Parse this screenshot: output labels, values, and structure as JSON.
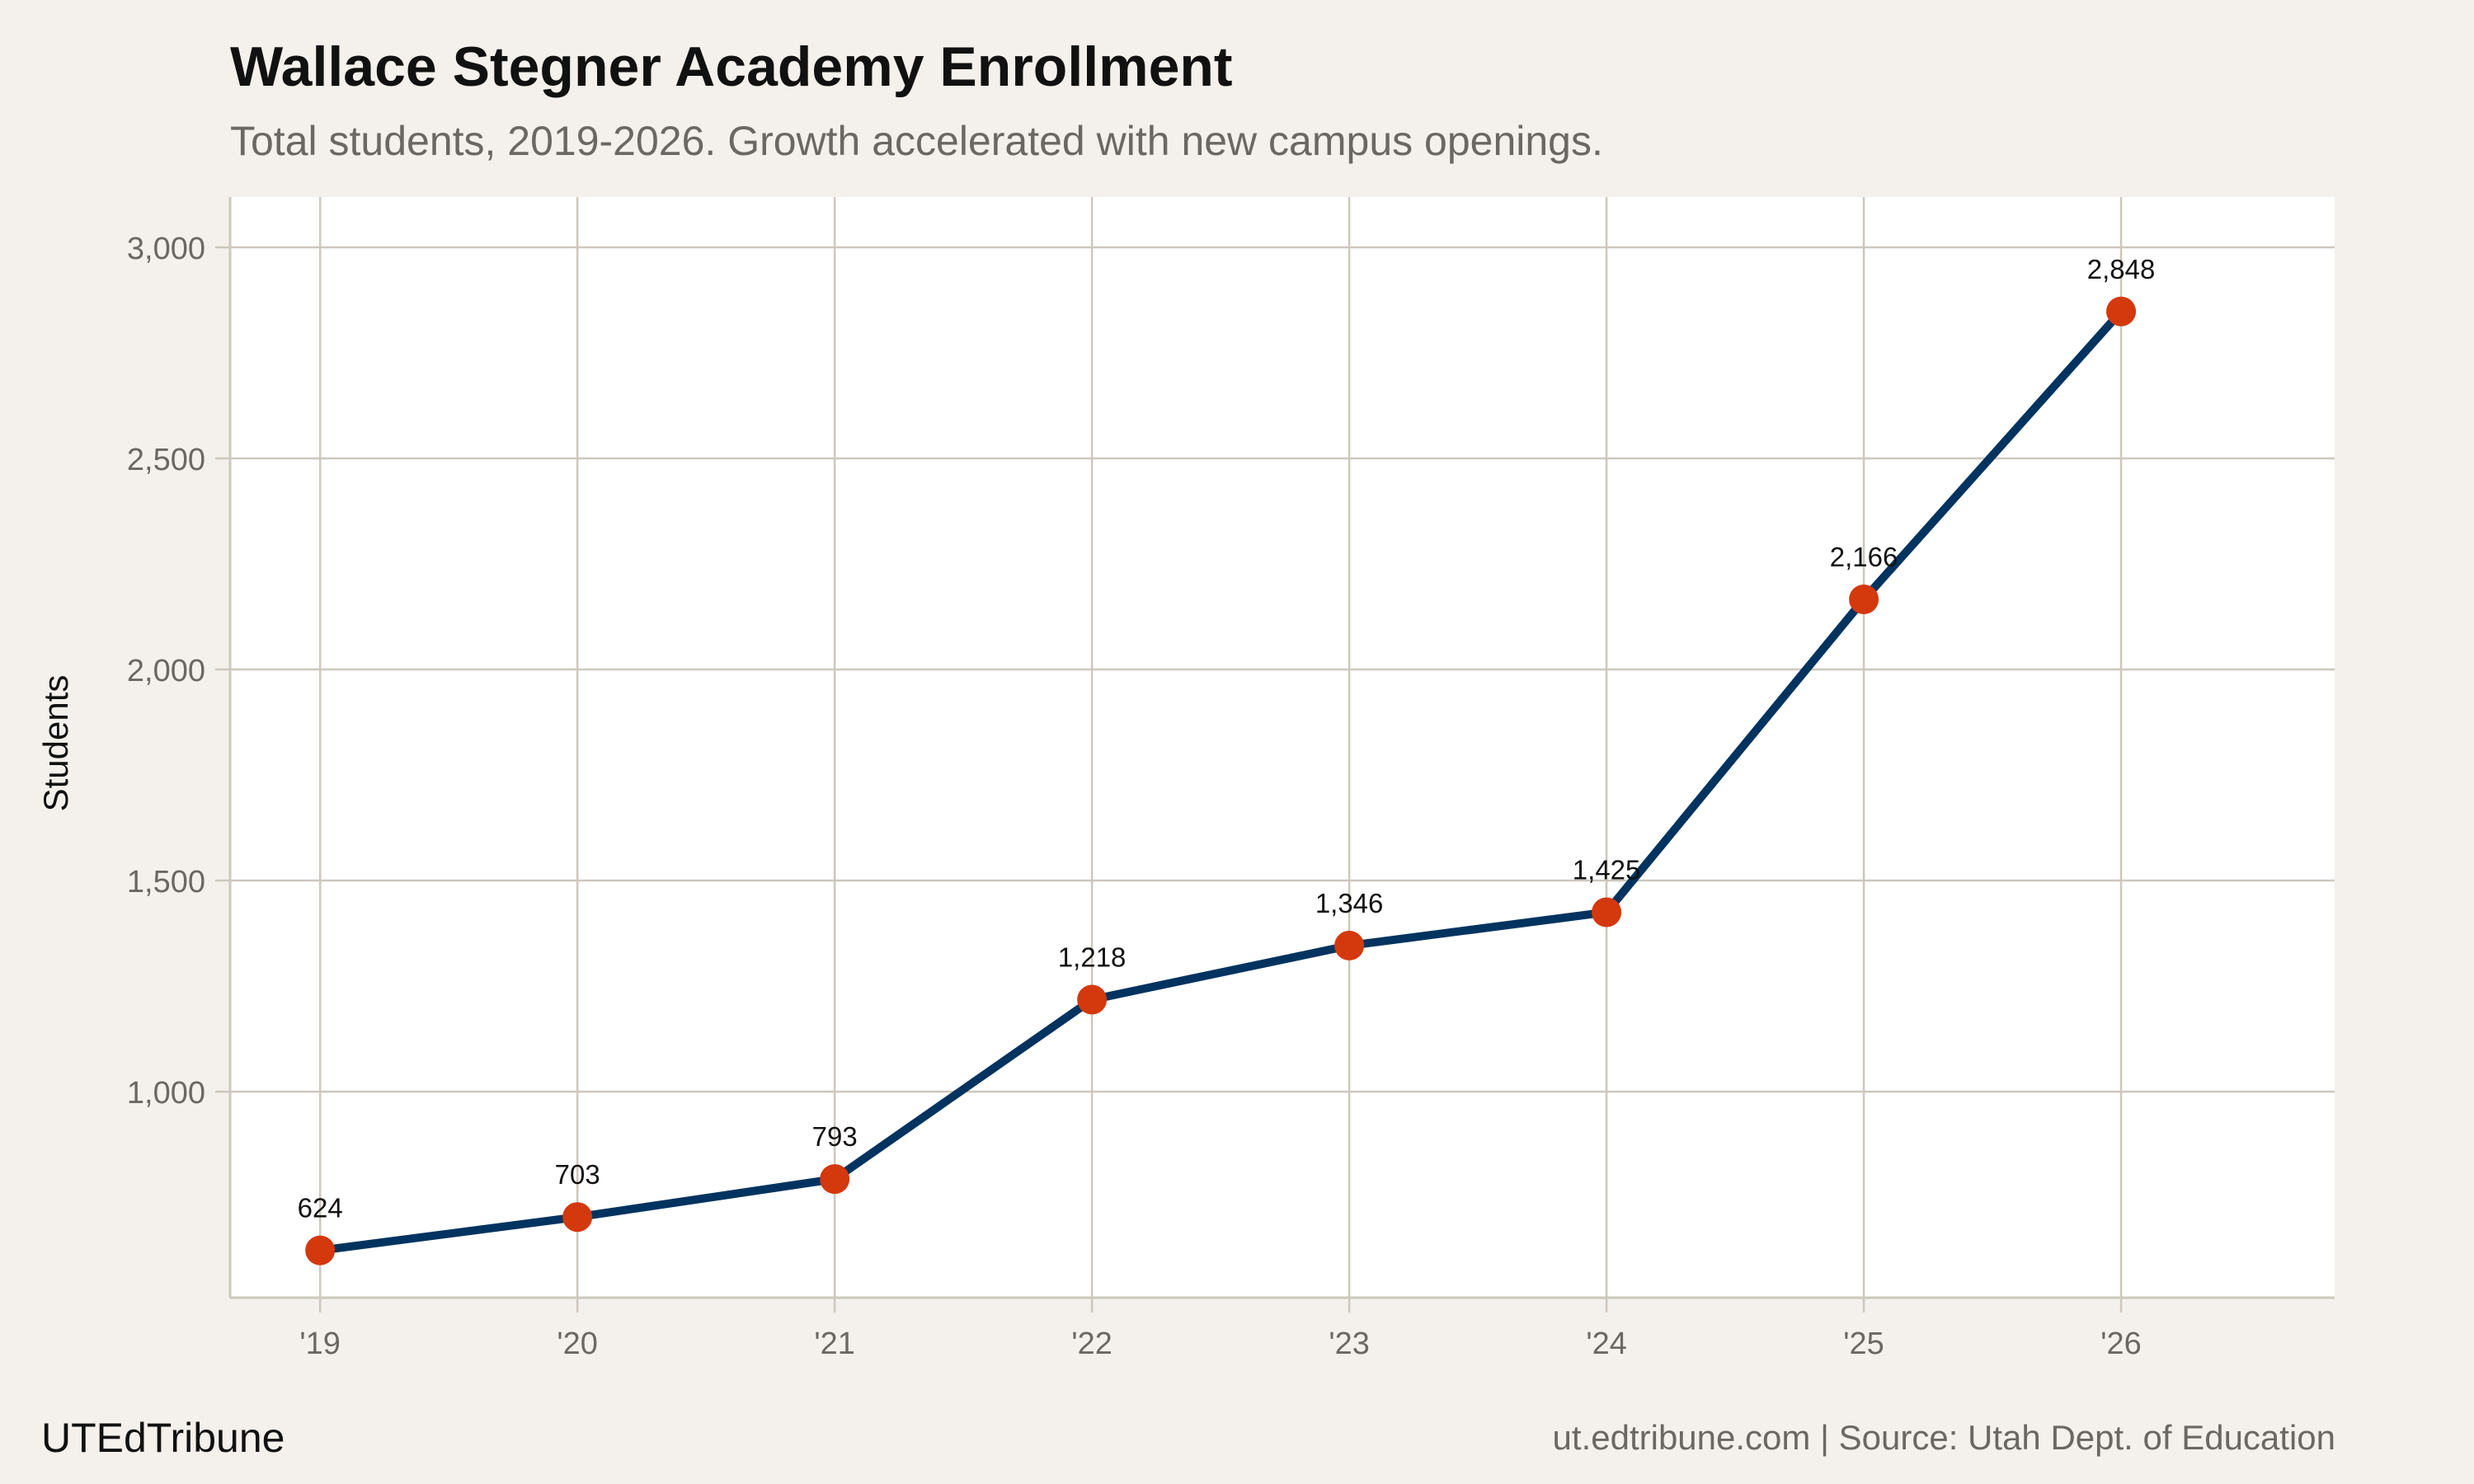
{
  "chart_data": {
    "type": "line",
    "title": "Wallace Stegner Academy Enrollment",
    "subtitle": "Total students, 2019-2026. Growth accelerated with new campus openings.",
    "xlabel": "",
    "ylabel": "Students",
    "x": [
      2019,
      2020,
      2021,
      2022,
      2023,
      2024,
      2025,
      2026
    ],
    "x_tick_labels": [
      "'19",
      "'20",
      "'21",
      "'22",
      "'23",
      "'24",
      "'25",
      "'26"
    ],
    "values": [
      624,
      703,
      793,
      1218,
      1346,
      1425,
      2166,
      2848
    ],
    "data_labels": [
      "624",
      "703",
      "793",
      "1,218",
      "1,346",
      "1,425",
      "2,166",
      "2,848"
    ],
    "y_ticks": [
      1000,
      1500,
      2000,
      2500,
      3000
    ],
    "y_tick_labels": [
      "1,000",
      "1,500",
      "2,000",
      "2,500",
      "3,000"
    ],
    "xlim": [
      2018.65,
      2026.83
    ],
    "ylim": [
      512,
      3119
    ],
    "grid": true,
    "legend": "none",
    "colors": {
      "line": "#00335f",
      "points": "#d4380d",
      "background": "#f4f1ec",
      "panel": "#ffffff",
      "grid": "#cdc7bd"
    }
  },
  "footer": {
    "brand": "UTEdTribune",
    "source": "ut.edtribune.com | Source: Utah Dept. of Education"
  }
}
